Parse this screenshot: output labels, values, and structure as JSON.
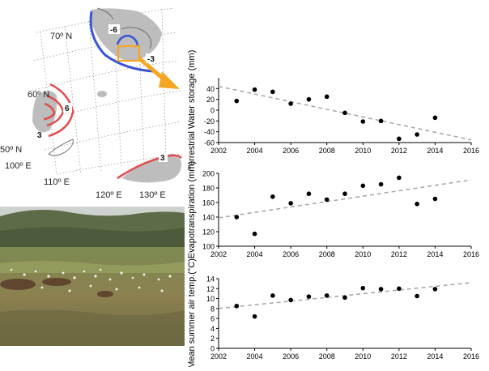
{
  "map": {
    "lat_labels": [
      "70º N",
      "60º N",
      "50º N"
    ],
    "lon_labels": [
      "100º E",
      "110º E",
      "120º E",
      "130º E"
    ],
    "contour_labels": [
      "-6",
      "-3",
      "6",
      "3",
      "3"
    ],
    "colors": {
      "negative_contour": "#3a56d4",
      "positive_contour": "#e05050",
      "land_shade": "#bdbdbd",
      "highlight_box": "#f5a623",
      "arrow": "#f5a623"
    }
  },
  "photo": {
    "subject": "tundra-wetland-photo"
  },
  "chart_data": [
    {
      "type": "scatter",
      "title": "",
      "xlabel": "",
      "ylabel": "Terrestrial Water storage (mm)",
      "xlim": [
        2002,
        2016
      ],
      "ylim": [
        -60,
        60
      ],
      "xticks": [
        "2002",
        "2004",
        "2006",
        "2008",
        "2010",
        "2012",
        "2014",
        "2016"
      ],
      "yticks": [
        "-60",
        "-40",
        "-20",
        "0",
        "20",
        "40"
      ],
      "x": [
        2003,
        2004,
        2005,
        2006,
        2007,
        2008,
        2009,
        2010,
        2011,
        2012,
        2013,
        2014
      ],
      "y": [
        17,
        38,
        34,
        12,
        20,
        25,
        -5,
        -21,
        -20,
        -53,
        -45,
        -14
      ],
      "trend": {
        "x": [
          2002,
          2016
        ],
        "y": [
          44,
          -55
        ],
        "style": "dashed"
      }
    },
    {
      "type": "scatter",
      "title": "",
      "xlabel": "",
      "ylabel": "Evapotranspiration (mm)",
      "xlim": [
        2002,
        2016
      ],
      "ylim": [
        100,
        200
      ],
      "xticks": [
        "2002",
        "2004",
        "2006",
        "2008",
        "2010",
        "2012",
        "2014",
        "2016"
      ],
      "yticks": [
        "100",
        "120",
        "140",
        "160",
        "180",
        "200"
      ],
      "x": [
        2003,
        2004,
        2005,
        2006,
        2007,
        2008,
        2009,
        2010,
        2011,
        2012,
        2013,
        2014
      ],
      "y": [
        140,
        117,
        168,
        159,
        172,
        164,
        172,
        183,
        185,
        194,
        158,
        165
      ],
      "trend": {
        "x": [
          2002,
          2016
        ],
        "y": [
          139,
          191
        ],
        "style": "dashed"
      }
    },
    {
      "type": "scatter",
      "title": "",
      "xlabel": "",
      "ylabel": "Mean summer air temp.(°C)",
      "xlim": [
        2002,
        2016
      ],
      "ylim": [
        0,
        14
      ],
      "xticks": [
        "2002",
        "2004",
        "2006",
        "2008",
        "2010",
        "2012",
        "2014",
        "2016"
      ],
      "yticks": [
        "0",
        "2",
        "4",
        "6",
        "8",
        "10",
        "12",
        "14"
      ],
      "x": [
        2003,
        2004,
        2005,
        2006,
        2007,
        2008,
        2009,
        2010,
        2011,
        2012,
        2013,
        2014
      ],
      "y": [
        8.5,
        6.4,
        10.6,
        9.7,
        10.4,
        10.6,
        10.2,
        12.1,
        11.9,
        12.0,
        10.5,
        11.9
      ],
      "trend": {
        "x": [
          2002,
          2016
        ],
        "y": [
          8.0,
          13.2
        ],
        "style": "dashed"
      }
    }
  ]
}
